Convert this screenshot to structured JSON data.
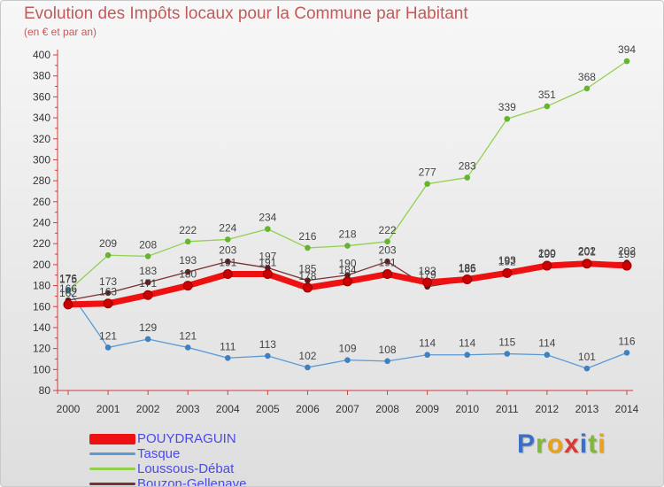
{
  "title": "Evolution des Impôts locaux pour la Commune par Habitant",
  "subtitle": "(en € et par an)",
  "logo": {
    "text": "Proxiti",
    "letters": [
      {
        "ch": "P",
        "color": "#3a6fc9"
      },
      {
        "ch": "r",
        "color": "#7fb83a"
      },
      {
        "ch": "o",
        "color": "#e8a21c"
      },
      {
        "ch": "x",
        "color": "#d9392f"
      },
      {
        "ch": "i",
        "color": "#3a6fc9"
      },
      {
        "ch": "t",
        "color": "#7fb83a"
      },
      {
        "ch": "i",
        "color": "#e8a21c"
      }
    ]
  },
  "chart_data": {
    "type": "line",
    "title": "Evolution des Impôts locaux pour la Commune par Habitant",
    "subtitle": "(en € et par an)",
    "x": [
      "2000",
      "2001",
      "2002",
      "2003",
      "2004",
      "2005",
      "2006",
      "2007",
      "2008",
      "2009",
      "2010",
      "2011",
      "2012",
      "2013",
      "2014"
    ],
    "ylim": [
      80,
      400
    ],
    "yticks": [
      80,
      100,
      120,
      140,
      160,
      180,
      200,
      220,
      240,
      260,
      280,
      300,
      320,
      340,
      360,
      380,
      400
    ],
    "grid": false,
    "legend_position": "bottom-left",
    "series": [
      {
        "name": "POUYDRAGUIN",
        "color": "#ee1111",
        "point_color": "#cc0000",
        "width": 7,
        "values": [
          162,
          163,
          171,
          180,
          191,
          191,
          178,
          184,
          191,
          183,
          186,
          192,
          199,
          201,
          199
        ],
        "labels": [
          "162",
          "163",
          "171",
          "180",
          "191",
          "191",
          "178",
          "184",
          "191",
          "183",
          "186",
          "192",
          "199",
          "201",
          "199"
        ]
      },
      {
        "name": "Tasque",
        "color": "#5b9bd5",
        "point_color": "#3f80c0",
        "width": 1.3,
        "values": [
          176,
          121,
          129,
          121,
          111,
          113,
          102,
          109,
          108,
          114,
          114,
          115,
          114,
          101,
          116
        ],
        "labels": [
          "176",
          "121",
          "129",
          "121",
          "111",
          "113",
          "102",
          "109",
          "108",
          "114",
          "114",
          "115",
          "114",
          "101",
          "116"
        ]
      },
      {
        "name": "Loussous-Débat",
        "color": "#92d050",
        "point_color": "#62b52c",
        "width": 1.3,
        "values": [
          175,
          209,
          208,
          222,
          224,
          234,
          216,
          218,
          222,
          277,
          283,
          339,
          351,
          368,
          394
        ],
        "labels": [
          "175",
          "209",
          "208",
          "222",
          "224",
          "234",
          "216",
          "218",
          "222",
          "277",
          "283",
          "339",
          "351",
          "368",
          "394"
        ]
      },
      {
        "name": "Bouzon-Gellenave",
        "color": "#7b3030",
        "point_color": "#5a1a1a",
        "width": 1.3,
        "values": [
          166,
          173,
          183,
          193,
          203,
          197,
          185,
          190,
          203,
          179,
          185,
          193,
          200,
          202,
          202
        ],
        "labels": [
          "166",
          "173",
          "183",
          "193",
          "203",
          "197",
          "185",
          "190",
          "203",
          "179",
          "185",
          "193",
          "200",
          "202",
          "202"
        ]
      }
    ]
  }
}
